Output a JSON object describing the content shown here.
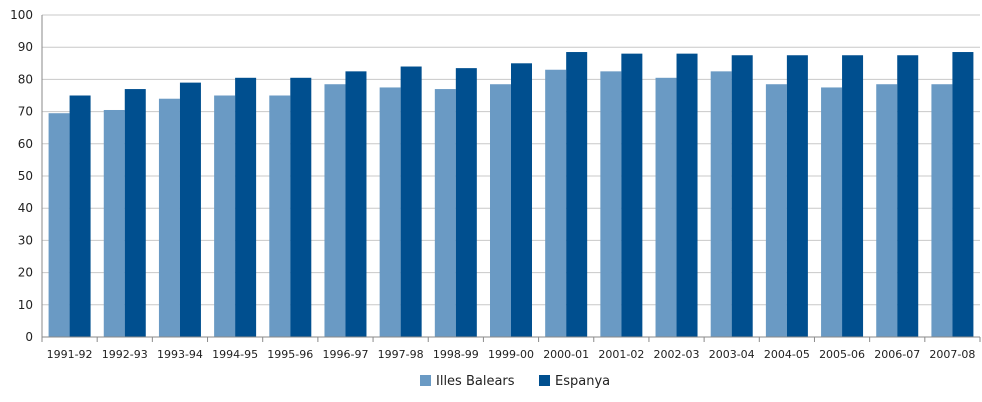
{
  "chart_data": {
    "type": "bar",
    "title": "",
    "xlabel": "",
    "ylabel": "",
    "ylim": [
      0,
      100
    ],
    "yticks": [
      0,
      10,
      20,
      30,
      40,
      50,
      60,
      70,
      80,
      90,
      100
    ],
    "grid": true,
    "legend_position": "bottom",
    "categories": [
      "1991-92",
      "1992-93",
      "1993-94",
      "1994-95",
      "1995-96",
      "1996-97",
      "1997-98",
      "1998-99",
      "1999-00",
      "2000-01",
      "2001-02",
      "2002-03",
      "2003-04",
      "2004-05",
      "2005-06",
      "2006-07",
      "2007-08"
    ],
    "series": [
      {
        "name": "Illes Balears",
        "color": "#6a9ac4",
        "values": [
          69.5,
          70.5,
          74,
          75,
          75,
          78.5,
          77.5,
          77,
          78.5,
          83,
          82.5,
          80.5,
          82.5,
          78.5,
          77.5,
          78.5,
          78.5
        ]
      },
      {
        "name": "Espanya",
        "color": "#004f8f",
        "values": [
          75,
          77,
          79,
          80.5,
          80.5,
          82.5,
          84,
          83.5,
          85,
          88.5,
          88,
          88,
          87.5,
          87.5,
          87.5,
          87.5,
          88.5
        ]
      }
    ]
  }
}
